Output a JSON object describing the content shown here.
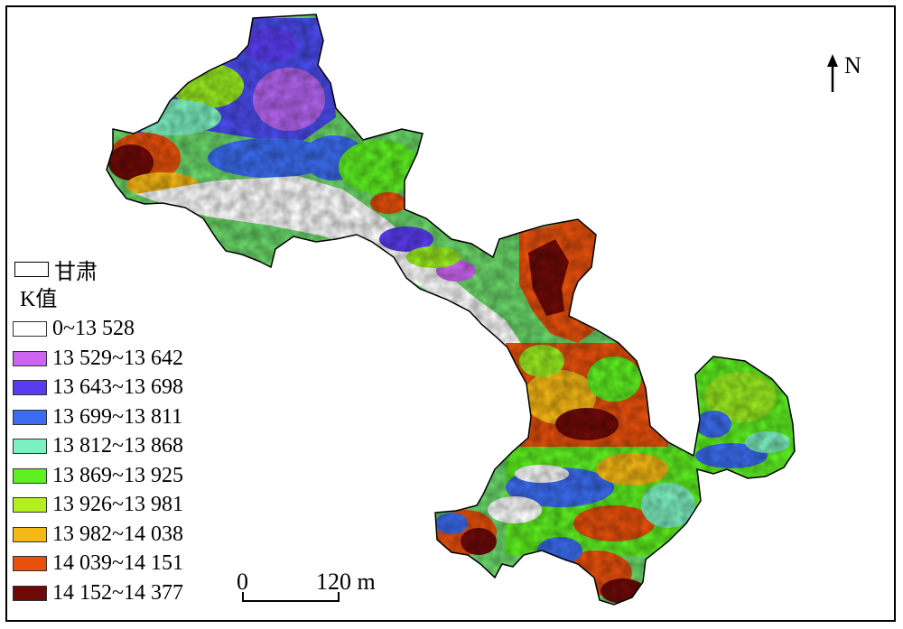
{
  "map": {
    "region_label": "甘肃",
    "legend_title": "K值",
    "classes": [
      {
        "label": "0~13 528",
        "color": "#ffffff"
      },
      {
        "label": "13 529~13 642",
        "color": "#cc66f2"
      },
      {
        "label": "13 643~13 698",
        "color": "#5a3cf0"
      },
      {
        "label": "13 699~13 811",
        "color": "#3b6cf0"
      },
      {
        "label": "13 812~13 868",
        "color": "#7cf0c0"
      },
      {
        "label": "13 869~13 925",
        "color": "#5ef020"
      },
      {
        "label": "13 926~13 981",
        "color": "#b4f020"
      },
      {
        "label": "13 982~14 038",
        "color": "#f5b814"
      },
      {
        "label": "14 039~14 151",
        "color": "#e8500c"
      },
      {
        "label": "14 152~14 377",
        "color": "#6e0a08"
      }
    ],
    "north_label": "N",
    "scale": {
      "zero": "0",
      "distance": "120 m"
    }
  }
}
